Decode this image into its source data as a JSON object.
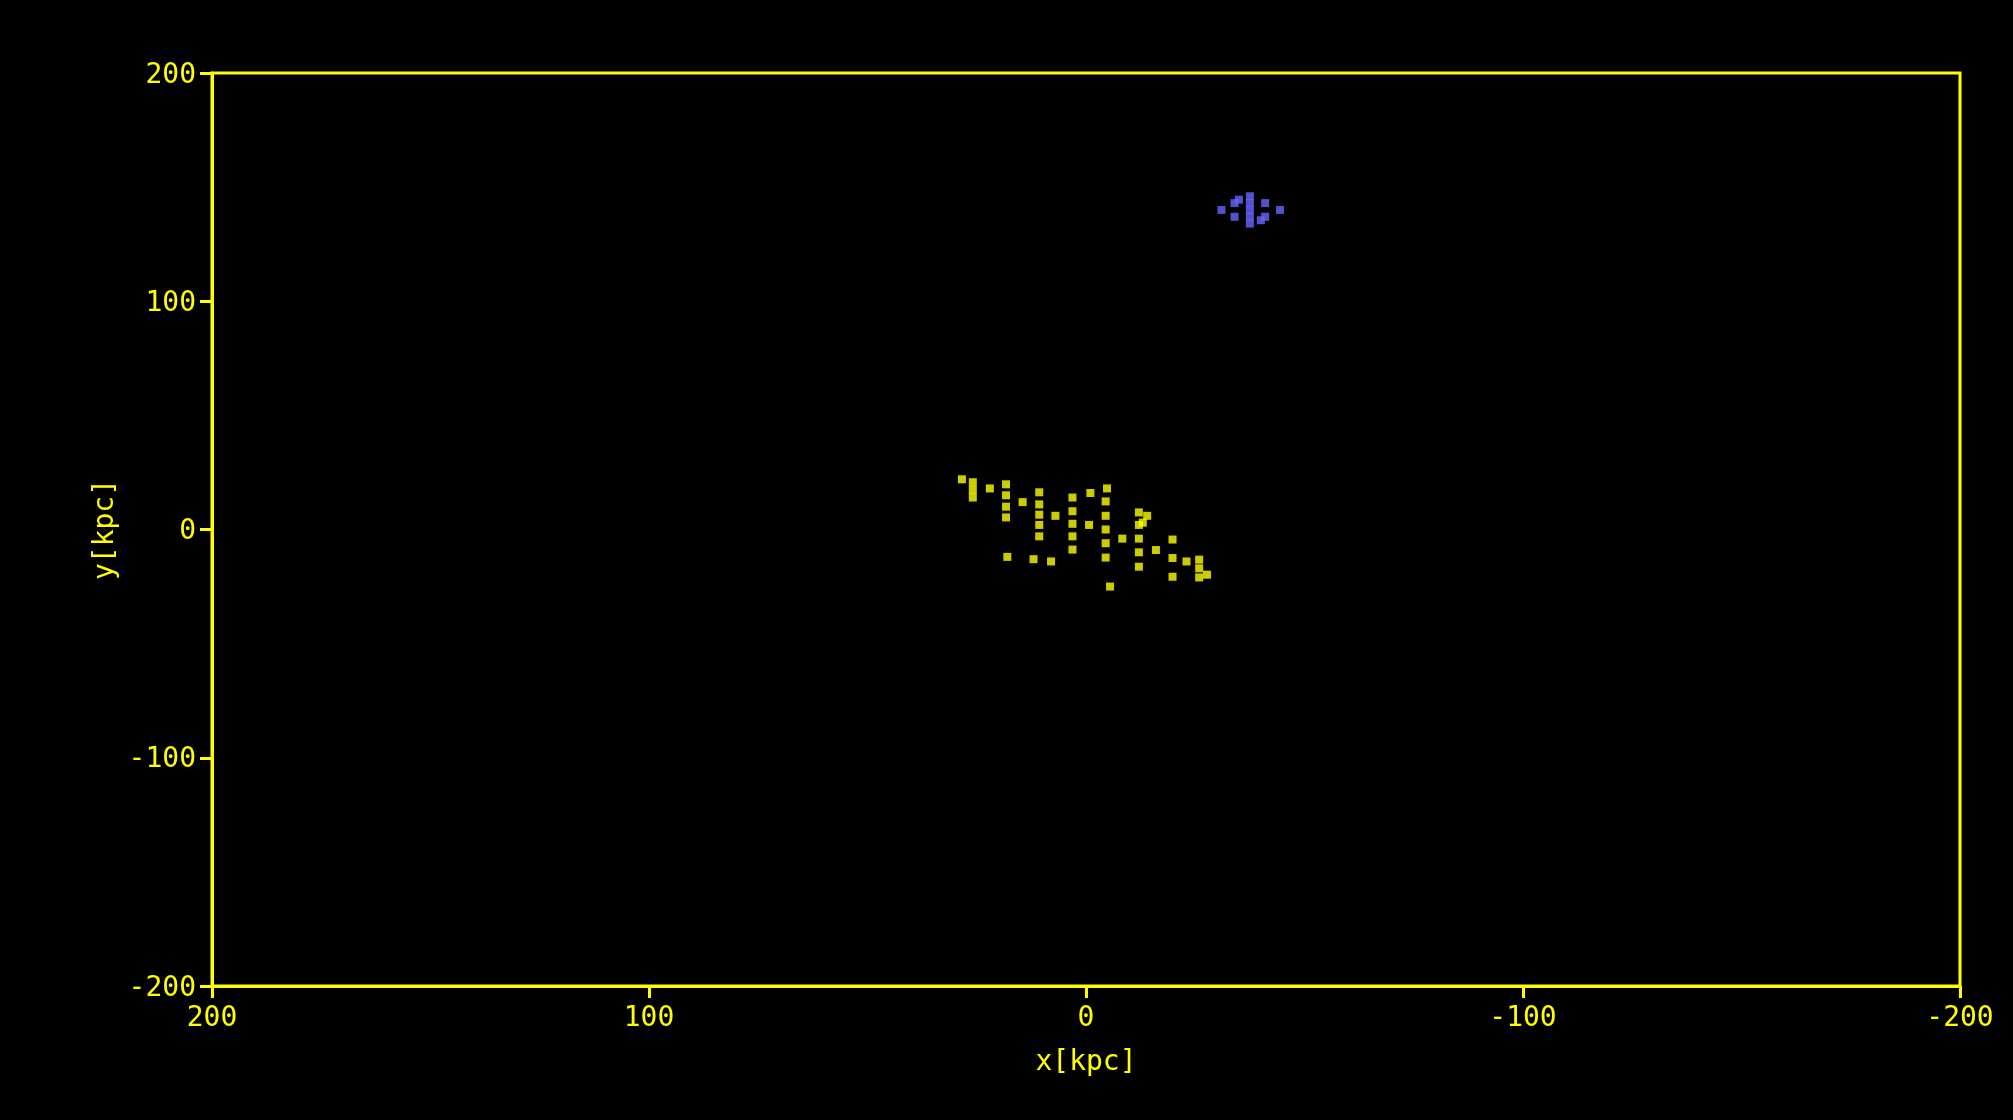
{
  "chart_data": {
    "type": "scatter",
    "xlabel": "x[kpc]",
    "ylabel": "y[kpc]",
    "xlim": [
      200,
      -200
    ],
    "xticks": [
      200,
      100,
      0,
      -100,
      -200
    ],
    "ylim": [
      -200,
      200
    ],
    "yticks": [
      -200,
      -100,
      0,
      100,
      200
    ],
    "grid": false,
    "marker": "square",
    "series": [
      {
        "color": "#ffff00",
        "x": [
          28.4,
          25.9,
          25.9,
          25.9,
          22,
          18.3,
          18.3,
          18.3,
          18.3,
          14.5,
          10.7,
          10.7,
          10.7,
          10.7,
          10.7,
          7,
          3.1,
          3.1,
          3.1,
          3.1,
          3.1,
          -0.7,
          -4.5,
          -4.5,
          -4.5,
          -4.5,
          -4.5,
          -8.3,
          -12.1,
          -12.1,
          -12.1,
          -12.1,
          -12.1,
          -16,
          -19.8,
          -19.8,
          -19.8,
          -23,
          -25.9,
          -25.9,
          -25.9,
          -27.7,
          18,
          12,
          8,
          -5.5,
          -4.8,
          -1,
          -14,
          -13
        ],
        "values": [
          22,
          20.7,
          17.3,
          14,
          18,
          19.8,
          15,
          10,
          5.3,
          12,
          16.3,
          11,
          6.5,
          2,
          -3,
          6,
          14,
          8,
          2.5,
          -3,
          -8.8,
          2,
          12.3,
          6,
          0,
          -6,
          -12.3,
          -4,
          7.5,
          2,
          -4,
          -10,
          -16.3,
          -9,
          -4.4,
          -12.5,
          -20.7,
          -14,
          -13.2,
          -17,
          -21,
          -19.8,
          -12,
          -13,
          -14,
          -25,
          18,
          16,
          6,
          3
        ]
      },
      {
        "color": "#6666ff",
        "x": [
          -31,
          -34,
          -34,
          -37.5,
          -37.5,
          -37.5,
          -37.5,
          -37.5,
          -41,
          -41,
          -44.4,
          -35,
          -40
        ],
        "values": [
          140,
          143,
          137,
          146,
          143,
          140,
          137,
          134,
          143,
          137,
          140,
          144.5,
          135.5
        ]
      }
    ]
  }
}
